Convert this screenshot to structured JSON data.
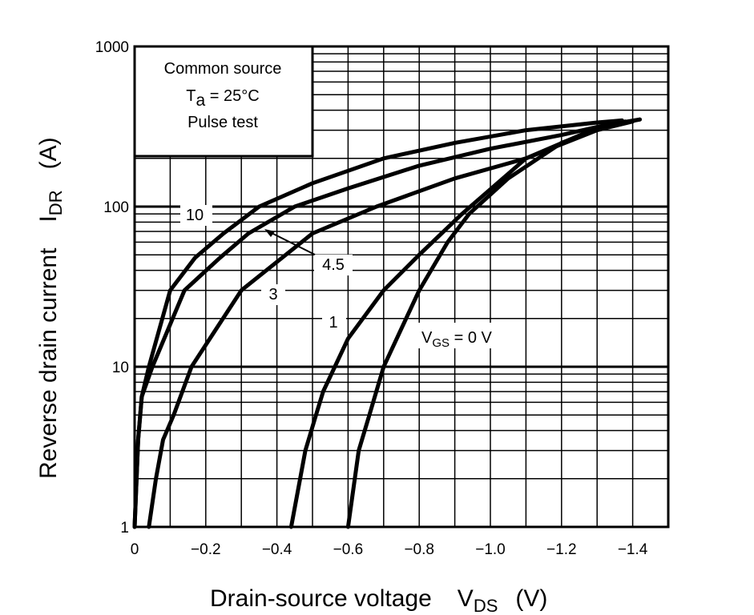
{
  "chart_data": {
    "type": "line",
    "x_scale": "linear",
    "y_scale": "log",
    "xlim": [
      0,
      -1.5
    ],
    "ylim": [
      1,
      1000
    ],
    "grid": true,
    "x_ticks": [
      "0",
      "−0.2",
      "−0.4",
      "−0.6",
      "−0.8",
      "−1.0",
      "−1.2",
      "−1.4"
    ],
    "y_ticks": [
      "1",
      "10",
      "100",
      "1000"
    ],
    "xlabel": {
      "main": "Drain-source voltage",
      "symbol": "V",
      "subscript": "DS",
      "unit": "(V)"
    },
    "ylabel": {
      "main": "Reverse drain current",
      "symbol": "I",
      "subscript": "DR",
      "unit": "(A)"
    },
    "info_box": [
      "Common source",
      "T",
      "a",
      " = 25°C",
      "Pulse test"
    ],
    "vgs_label": {
      "symbol": "V",
      "subscript": "GS",
      "rest": " = 0 V"
    },
    "series": [
      {
        "name": "10",
        "x": [
          0,
          -0.01,
          -0.02,
          -0.04,
          -0.1,
          -0.17,
          -0.25,
          -0.35,
          -0.5,
          -0.7,
          -0.9,
          -1.1,
          -1.3,
          -1.37
        ],
        "y": [
          1,
          3.5,
          6.5,
          10,
          30,
          48,
          68,
          100,
          140,
          200,
          250,
          300,
          335,
          345
        ]
      },
      {
        "name": "4.5",
        "x": [
          0,
          -0.01,
          -0.02,
          -0.05,
          -0.14,
          -0.24,
          -0.32,
          -0.45,
          -0.6,
          -0.8,
          -1.0,
          -1.2,
          -1.33,
          -1.38
        ],
        "y": [
          1,
          3.5,
          6.5,
          10,
          30,
          48,
          68,
          100,
          130,
          180,
          230,
          280,
          325,
          340
        ]
      },
      {
        "name": "3",
        "x": [
          -0.04,
          -0.06,
          -0.08,
          -0.11,
          -0.16,
          -0.3,
          -0.5,
          -0.68,
          -0.9,
          -1.1,
          -1.3,
          -1.4
        ],
        "y": [
          1,
          2,
          3.5,
          5,
          10,
          30,
          68,
          100,
          150,
          200,
          300,
          340
        ]
      },
      {
        "name": "1",
        "x": [
          -0.44,
          -0.48,
          -0.51,
          -0.53,
          -0.6,
          -0.7,
          -0.8,
          -0.92,
          -1.1,
          -1.3,
          -1.42
        ],
        "y": [
          1,
          3,
          5,
          7,
          15,
          30,
          50,
          90,
          200,
          310,
          350
        ]
      },
      {
        "name": "VGS = 0 V",
        "x": [
          -0.6,
          -0.63,
          -0.66,
          -0.7,
          -0.8,
          -0.88,
          -0.94,
          -1.05,
          -1.2,
          -1.35,
          -1.42
        ],
        "y": [
          1,
          3,
          5,
          10,
          30,
          60,
          90,
          150,
          250,
          330,
          350
        ]
      }
    ]
  }
}
